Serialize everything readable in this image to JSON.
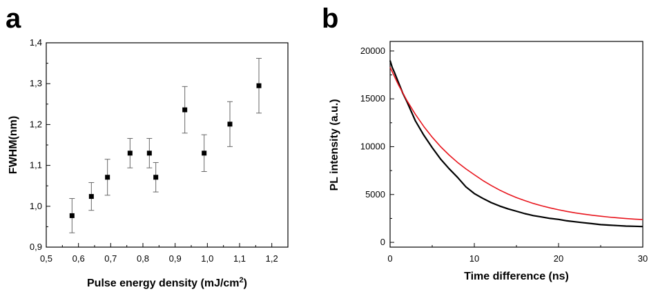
{
  "colors": {
    "axis": "#000000",
    "marker": "#000000",
    "errorbar": "#666666",
    "measured": "#000000",
    "fit": "#e8141c"
  },
  "chart_data": [
    {
      "panel_label": "a",
      "type": "scatter",
      "xlabel": "Pulse energy density (mJ/cm",
      "xlabel_superscript": "2",
      "xlabel_suffix": ")",
      "ylabel": "FWHM(nm)",
      "xlim": [
        0.5,
        1.25
      ],
      "ylim": [
        0.9,
        1.4
      ],
      "xticks": [
        0.5,
        0.6,
        0.7,
        0.8,
        0.9,
        1.0,
        1.1,
        1.2
      ],
      "xtick_labels": [
        "0,5",
        "0,6",
        "0,7",
        "0,8",
        "0,9",
        "1,0",
        "1,1",
        "1,2"
      ],
      "yticks": [
        0.9,
        1.0,
        1.1,
        1.2,
        1.3,
        1.4
      ],
      "ytick_labels": [
        "0,9",
        "1,0",
        "1,1",
        "1,2",
        "1,3",
        "1,4"
      ],
      "grid": false,
      "marker": "square",
      "points": [
        {
          "x": 0.58,
          "y": 0.977,
          "err": 0.042
        },
        {
          "x": 0.64,
          "y": 1.024,
          "err": 0.034
        },
        {
          "x": 0.69,
          "y": 1.071,
          "err": 0.044
        },
        {
          "x": 0.76,
          "y": 1.13,
          "err": 0.036
        },
        {
          "x": 0.82,
          "y": 1.13,
          "err": 0.036
        },
        {
          "x": 0.84,
          "y": 1.071,
          "err": 0.036
        },
        {
          "x": 0.93,
          "y": 1.236,
          "err": 0.057
        },
        {
          "x": 0.99,
          "y": 1.13,
          "err": 0.045
        },
        {
          "x": 1.07,
          "y": 1.201,
          "err": 0.055
        },
        {
          "x": 1.16,
          "y": 1.295,
          "err": 0.067
        }
      ]
    },
    {
      "panel_label": "b",
      "type": "line",
      "xlabel": "Time difference (ns)",
      "ylabel": "PL intensity (a.u.)",
      "xlim": [
        0,
        30
      ],
      "ylim": [
        -500,
        21000
      ],
      "xticks": [
        0,
        10,
        20,
        30
      ],
      "xtick_labels": [
        "0",
        "10",
        "20",
        "30"
      ],
      "yticks": [
        0,
        5000,
        10000,
        15000,
        20000
      ],
      "ytick_labels": [
        "0",
        "5000",
        "10000",
        "15000",
        "20000"
      ],
      "grid": false,
      "series": [
        {
          "role": "measured",
          "x": [
            0,
            0.25,
            0.5,
            1,
            1.5,
            2,
            3,
            4,
            5,
            6,
            7,
            8,
            9,
            10,
            11,
            12,
            13,
            14,
            15,
            16,
            17,
            18,
            19,
            20,
            21,
            22,
            23,
            24,
            25,
            26,
            27,
            28,
            29,
            30
          ],
          "y": [
            19000,
            18300,
            17800,
            16700,
            15600,
            14700,
            12700,
            11200,
            9900,
            8700,
            7700,
            6800,
            5800,
            5100,
            4600,
            4150,
            3800,
            3500,
            3250,
            3000,
            2800,
            2650,
            2500,
            2400,
            2250,
            2150,
            2050,
            1950,
            1850,
            1800,
            1750,
            1700,
            1680,
            1650
          ]
        },
        {
          "role": "fit",
          "x": [
            0,
            1,
            2,
            3,
            4,
            5,
            6,
            7,
            8,
            9,
            10,
            11,
            12,
            13,
            14,
            15,
            16,
            17,
            18,
            19,
            20,
            21,
            22,
            23,
            24,
            25,
            26,
            27,
            28,
            29,
            30
          ],
          "y": [
            18300,
            16450,
            14820,
            13380,
            12110,
            10990,
            10000,
            9130,
            8360,
            7680,
            7070,
            6470,
            5940,
            5470,
            5050,
            4680,
            4360,
            4070,
            3820,
            3600,
            3400,
            3230,
            3080,
            2950,
            2830,
            2730,
            2640,
            2560,
            2490,
            2430,
            2380
          ]
        }
      ]
    }
  ]
}
